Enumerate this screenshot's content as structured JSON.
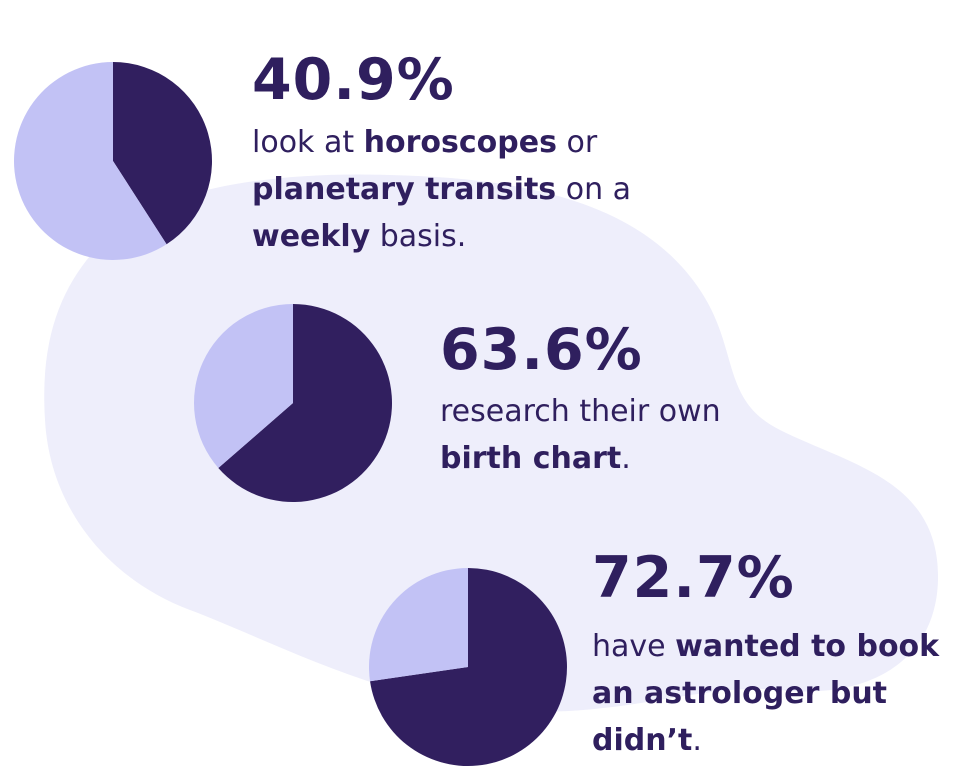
{
  "colors": {
    "dark": "#311f5f",
    "light": "#c2c2f5",
    "blob": "#eeeefb",
    "text": "#2f1f5e"
  },
  "chart_data": [
    {
      "type": "pie",
      "value_label": "40.9%",
      "values": [
        40.9,
        59.1
      ]
    },
    {
      "type": "pie",
      "value_label": "63.6%",
      "values": [
        63.6,
        36.4
      ]
    },
    {
      "type": "pie",
      "value_label": "72.7%",
      "values": [
        72.7,
        27.3
      ]
    }
  ],
  "stats": [
    {
      "pct": "40.9%",
      "lines": [
        [
          {
            "t": "look at ",
            "b": false
          },
          {
            "t": "horoscopes",
            "b": true
          },
          {
            "t": " or",
            "b": false
          }
        ],
        [
          {
            "t": "planetary transits",
            "b": true
          },
          {
            "t": " on a",
            "b": false
          }
        ],
        [
          {
            "t": "weekly",
            "b": true
          },
          {
            "t": " basis.",
            "b": false
          }
        ]
      ]
    },
    {
      "pct": "63.6%",
      "lines": [
        [
          {
            "t": "research their own",
            "b": false
          }
        ],
        [
          {
            "t": "birth chart",
            "b": true
          },
          {
            "t": ".",
            "b": false
          }
        ]
      ]
    },
    {
      "pct": "72.7%",
      "lines": [
        [
          {
            "t": "have ",
            "b": false
          },
          {
            "t": "wanted to book",
            "b": true
          }
        ],
        [
          {
            "t": "an astrologer but",
            "b": true
          }
        ],
        [
          {
            "t": "didn’t",
            "b": true
          },
          {
            "t": ".",
            "b": false
          }
        ]
      ]
    }
  ]
}
